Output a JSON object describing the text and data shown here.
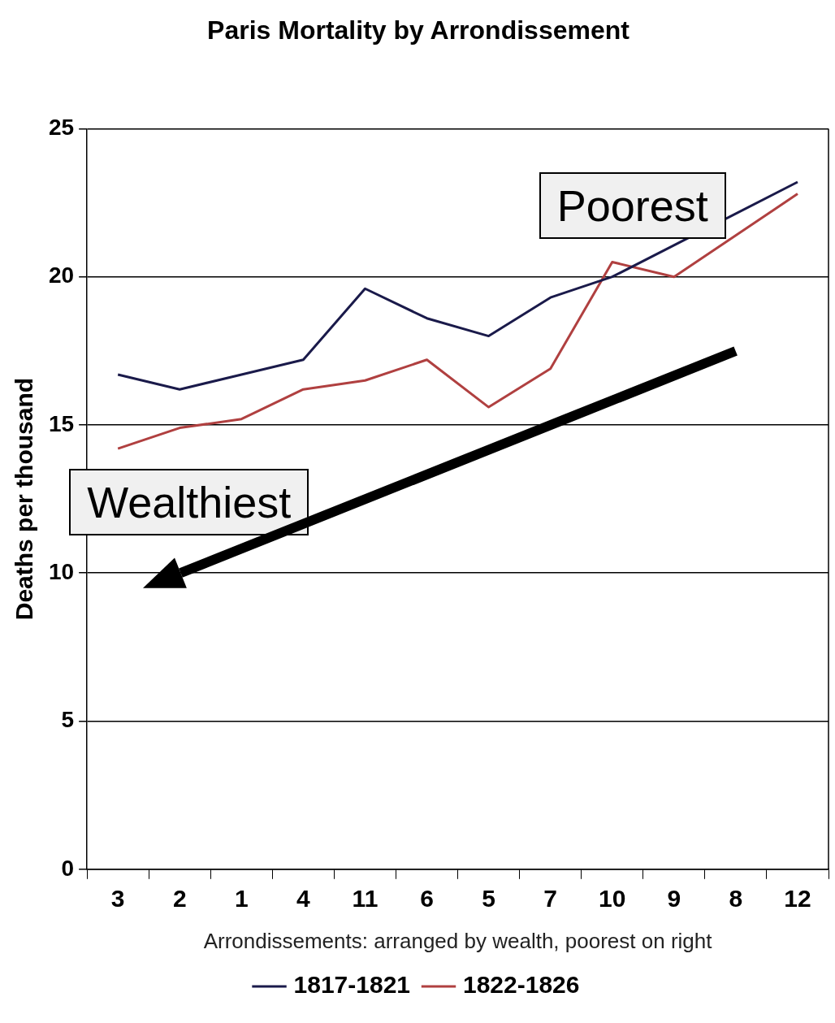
{
  "chart_data": {
    "type": "line",
    "title": "Paris Mortality by Arrondissement",
    "xlabel": "Arrondissements: arranged by wealth, poorest on right",
    "ylabel": "Deaths per thousand",
    "categories": [
      "3",
      "2",
      "1",
      "4",
      "11",
      "6",
      "5",
      "7",
      "10",
      "9",
      "8",
      "12"
    ],
    "series": [
      {
        "name": "1817-1821",
        "color": "#1a1a4a",
        "values": [
          16.7,
          16.2,
          16.7,
          17.2,
          19.6,
          18.6,
          18.0,
          19.3,
          20.0,
          null,
          null,
          23.2
        ]
      },
      {
        "name": "1822-1826",
        "color": "#b04040",
        "values": [
          14.2,
          14.9,
          15.2,
          16.2,
          16.5,
          17.2,
          15.6,
          16.9,
          20.5,
          20.0,
          null,
          22.8
        ]
      }
    ],
    "ylim": [
      0,
      25
    ],
    "yticks": [
      0,
      5,
      10,
      15,
      20,
      25
    ],
    "grid": "y",
    "legend": "bottom",
    "marker": "none",
    "line_style": "solid",
    "annotations": [
      "Poorest",
      "Wealthiest"
    ]
  }
}
